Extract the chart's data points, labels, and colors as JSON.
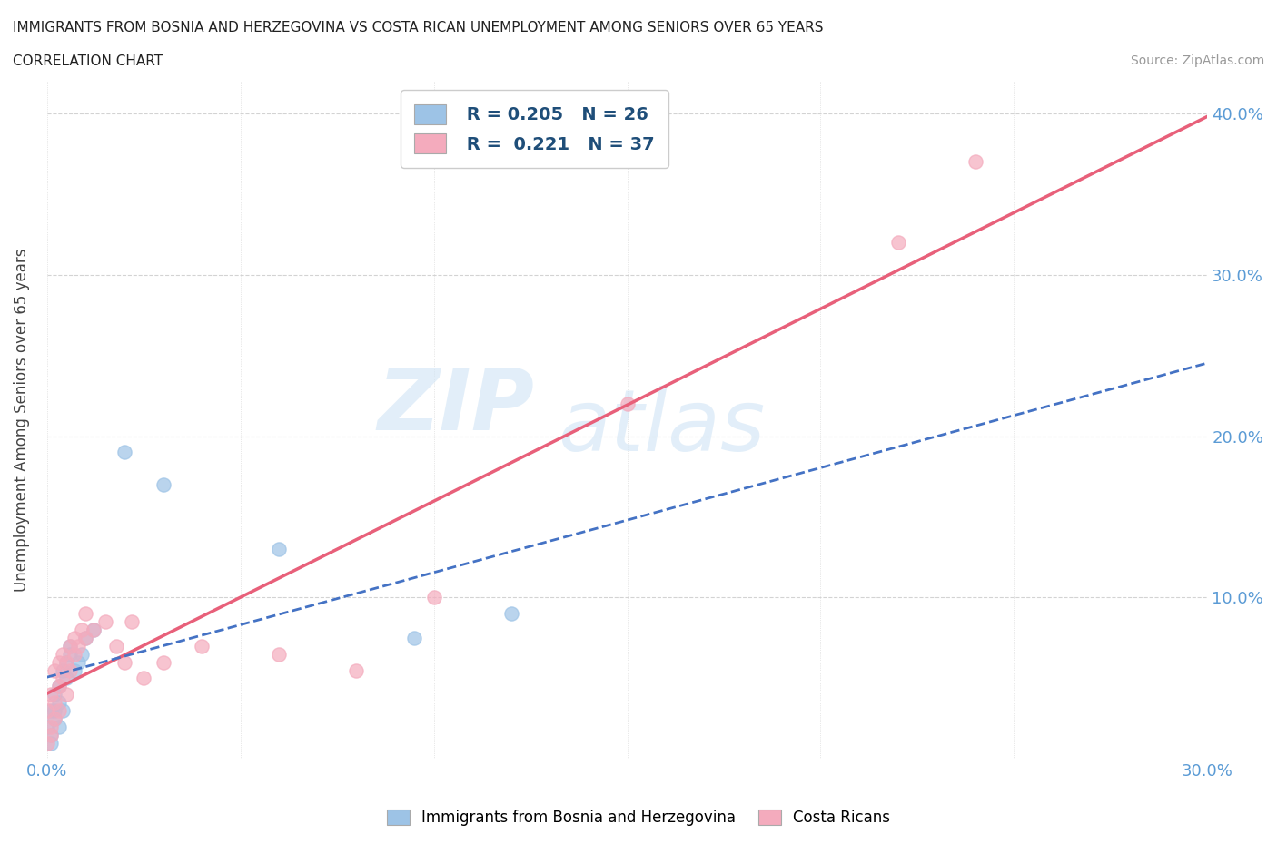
{
  "title_line1": "IMMIGRANTS FROM BOSNIA AND HERZEGOVINA VS COSTA RICAN UNEMPLOYMENT AMONG SENIORS OVER 65 YEARS",
  "title_line2": "CORRELATION CHART",
  "source_text": "Source: ZipAtlas.com",
  "ylabel": "Unemployment Among Seniors over 65 years",
  "xlim": [
    0.0,
    0.3
  ],
  "ylim": [
    0.0,
    0.42
  ],
  "x_ticks": [
    0.0,
    0.05,
    0.1,
    0.15,
    0.2,
    0.25,
    0.3
  ],
  "x_tick_labels": [
    "0.0%",
    "",
    "",
    "",
    "",
    "",
    "30.0%"
  ],
  "y_ticks": [
    0.0,
    0.05,
    0.1,
    0.15,
    0.2,
    0.25,
    0.3,
    0.35,
    0.4
  ],
  "y_tick_labels": [
    "",
    "",
    "10.0%",
    "",
    "20.0%",
    "",
    "30.0%",
    "",
    "40.0%"
  ],
  "blue_color": "#9DC3E6",
  "pink_color": "#F4ABBD",
  "blue_line_color": "#4472C4",
  "pink_line_color": "#E8607A",
  "watermark_top": "ZIP",
  "watermark_bottom": "atlas",
  "bosnia_x": [
    0.0,
    0.001,
    0.001,
    0.001,
    0.002,
    0.002,
    0.002,
    0.003,
    0.003,
    0.003,
    0.004,
    0.004,
    0.005,
    0.005,
    0.006,
    0.006,
    0.007,
    0.008,
    0.009,
    0.01,
    0.012,
    0.02,
    0.03,
    0.06,
    0.095,
    0.12
  ],
  "bosnia_y": [
    0.02,
    0.03,
    0.01,
    0.015,
    0.025,
    0.03,
    0.04,
    0.035,
    0.02,
    0.045,
    0.03,
    0.055,
    0.06,
    0.05,
    0.065,
    0.07,
    0.055,
    0.06,
    0.065,
    0.075,
    0.08,
    0.19,
    0.17,
    0.13,
    0.075,
    0.09
  ],
  "costa_rica_x": [
    0.0,
    0.0,
    0.001,
    0.001,
    0.001,
    0.002,
    0.002,
    0.002,
    0.003,
    0.003,
    0.003,
    0.004,
    0.004,
    0.005,
    0.005,
    0.006,
    0.006,
    0.007,
    0.007,
    0.008,
    0.009,
    0.01,
    0.01,
    0.012,
    0.015,
    0.018,
    0.02,
    0.022,
    0.025,
    0.03,
    0.04,
    0.06,
    0.08,
    0.1,
    0.15,
    0.22,
    0.24
  ],
  "costa_rica_y": [
    0.03,
    0.01,
    0.02,
    0.04,
    0.015,
    0.035,
    0.055,
    0.025,
    0.045,
    0.06,
    0.03,
    0.05,
    0.065,
    0.06,
    0.04,
    0.07,
    0.055,
    0.065,
    0.075,
    0.07,
    0.08,
    0.075,
    0.09,
    0.08,
    0.085,
    0.07,
    0.06,
    0.085,
    0.05,
    0.06,
    0.07,
    0.065,
    0.055,
    0.1,
    0.22,
    0.32,
    0.37
  ]
}
